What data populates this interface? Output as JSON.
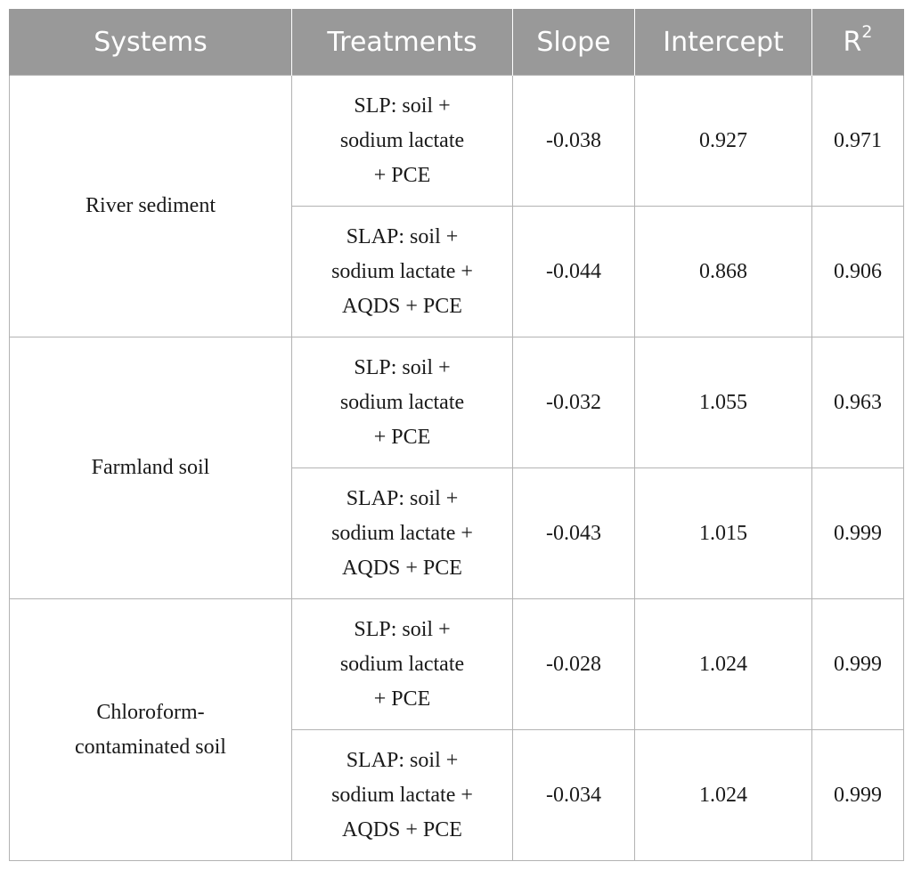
{
  "headers": {
    "systems": "Systems",
    "treatments": "Treatments",
    "slope": "Slope",
    "intercept": "Intercept",
    "r2_base": "R",
    "r2_sup": "2"
  },
  "groups": [
    {
      "system": "River sediment",
      "rows": [
        {
          "treatment": "SLP: soil +\nsodium lactate\n+ PCE",
          "slope": "-0.038",
          "intercept": "0.927",
          "r2": "0.971"
        },
        {
          "treatment": "SLAP: soil +\nsodium lactate +\nAQDS + PCE",
          "slope": "-0.044",
          "intercept": "0.868",
          "r2": "0.906"
        }
      ]
    },
    {
      "system": "Farmland soil",
      "rows": [
        {
          "treatment": "SLP: soil +\nsodium lactate\n+ PCE",
          "slope": "-0.032",
          "intercept": "1.055",
          "r2": "0.963"
        },
        {
          "treatment": "SLAP: soil +\nsodium lactate +\nAQDS + PCE",
          "slope": "-0.043",
          "intercept": "1.015",
          "r2": "0.999"
        }
      ]
    },
    {
      "system": "Chloroform-\ncontaminated soil",
      "rows": [
        {
          "treatment": "SLP: soil +\nsodium lactate\n+ PCE",
          "slope": "-0.028",
          "intercept": "1.024",
          "r2": "0.999"
        },
        {
          "treatment": "SLAP: soil +\nsodium lactate +\nAQDS + PCE",
          "slope": "-0.034",
          "intercept": "1.024",
          "r2": "0.999"
        }
      ]
    }
  ]
}
